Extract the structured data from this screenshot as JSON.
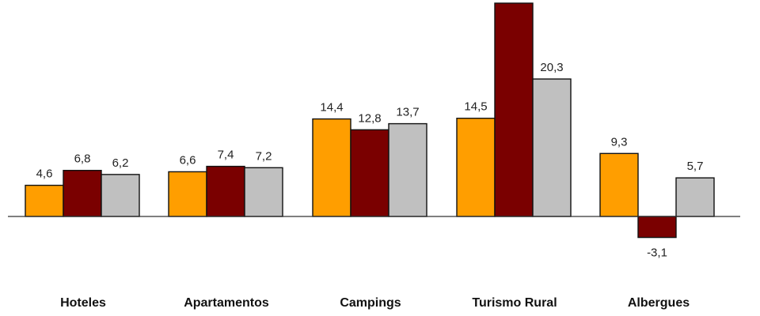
{
  "chart_data": {
    "type": "bar",
    "categories": [
      "Hoteles",
      "Apartamentos",
      "Campings",
      "Turismo Rural",
      "Albergues"
    ],
    "series": [
      {
        "values": [
          4.6,
          6.6,
          14.4,
          14.5,
          9.3
        ],
        "color": "#FF9E00"
      },
      {
        "values": [
          6.8,
          7.4,
          12.8,
          31.5,
          -3.1
        ],
        "color": "#7A0000"
      },
      {
        "values": [
          6.2,
          7.2,
          13.7,
          20.3,
          5.7
        ],
        "color": "#C0C0C0"
      }
    ],
    "data_labels": [
      [
        "4,6",
        "6,6",
        "14,4",
        "14,5",
        "9,3"
      ],
      [
        "6,8",
        "7,4",
        "12,8",
        "",
        "-3,1"
      ],
      [
        "6,2",
        "7,2",
        "13,7",
        "20,3",
        "5,7"
      ]
    ],
    "title": "",
    "xlabel": "",
    "ylabel": "",
    "ylim": [
      -3.1,
      31.5
    ],
    "grid": false,
    "legend": "none"
  }
}
